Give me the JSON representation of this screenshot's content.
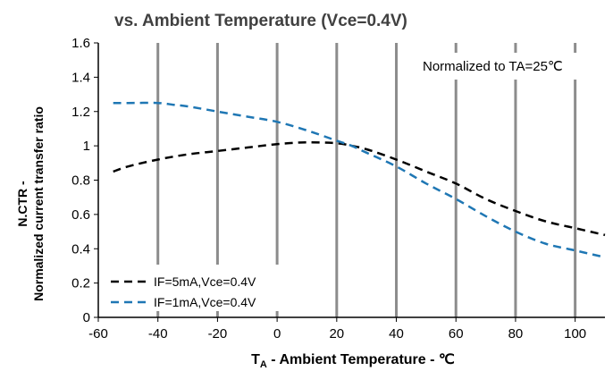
{
  "chart_data": {
    "type": "line",
    "title": "vs. Ambient Temperature (Vce=0.4V)",
    "ylabel_line1": "N.CTR -",
    "ylabel_line2": "Normalized current transfer ratio",
    "xlabel_prefix": "T",
    "xlabel_sub": "A",
    "xlabel_rest": " - Ambient  Temperature - ℃",
    "xlim": [
      -60,
      110
    ],
    "ylim": [
      0,
      1.6
    ],
    "xticks": [
      -60,
      -40,
      -20,
      0,
      20,
      40,
      60,
      80,
      100
    ],
    "xtick_labels": [
      "-60",
      "-40",
      "-20",
      "0",
      "20",
      "40",
      "60",
      "80",
      "100"
    ],
    "yticks": [
      0,
      0.2,
      0.4,
      0.6,
      0.8,
      1,
      1.2,
      1.4,
      1.6
    ],
    "ytick_labels": [
      "0",
      "0.2",
      "0.4",
      "0.6",
      "0.8",
      "1",
      "1.2",
      "1.4",
      "1.6"
    ],
    "vertical_grid": true,
    "horizontal_grid": false,
    "annotation": "Normalized to TA=25℃",
    "legend_position": "bottom-left",
    "series": [
      {
        "name": "IF=5mA,Vce=0.4V",
        "color": "#000000",
        "x": [
          -55,
          -50,
          -40,
          -30,
          -20,
          -10,
          0,
          10,
          20,
          25,
          30,
          40,
          50,
          60,
          70,
          80,
          90,
          100,
          110
        ],
        "y": [
          0.85,
          0.88,
          0.92,
          0.95,
          0.97,
          0.99,
          1.01,
          1.02,
          1.015,
          1.0,
          0.98,
          0.92,
          0.85,
          0.78,
          0.69,
          0.62,
          0.56,
          0.52,
          0.48
        ]
      },
      {
        "name": "IF=1mA,Vce=0.4V",
        "color": "#1f77b4",
        "x": [
          -55,
          -50,
          -40,
          -35,
          -30,
          -20,
          -10,
          0,
          10,
          20,
          25,
          30,
          40,
          50,
          60,
          70,
          80,
          90,
          100,
          110
        ],
        "y": [
          1.25,
          1.25,
          1.25,
          1.24,
          1.23,
          1.2,
          1.17,
          1.14,
          1.09,
          1.03,
          1.0,
          0.96,
          0.88,
          0.78,
          0.69,
          0.59,
          0.5,
          0.43,
          0.39,
          0.35
        ]
      }
    ]
  }
}
